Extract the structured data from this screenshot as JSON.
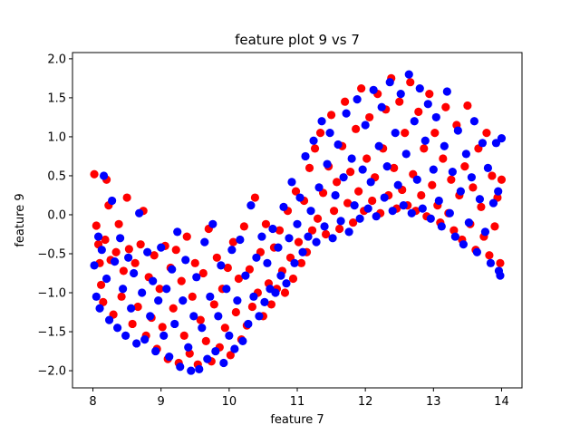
{
  "chart_data": {
    "type": "scatter",
    "title": "feature plot 9 vs 7",
    "xlabel": "feature 7",
    "ylabel": "feature 9",
    "xlim": [
      7.7,
      14.3
    ],
    "ylim": [
      -2.22,
      2.08
    ],
    "xticks": [
      "8",
      "9",
      "10",
      "11",
      "12",
      "13",
      "14"
    ],
    "yticks": [
      "−2.0",
      "−1.5",
      "−1.0",
      "−0.5",
      "0.0",
      "0.5",
      "1.0",
      "1.5",
      "2.0"
    ],
    "grid": false,
    "series": [
      {
        "color": "#ff0000",
        "points": [
          [
            8.02,
            0.52
          ],
          [
            8.05,
            -0.14
          ],
          [
            8.08,
            -0.38
          ],
          [
            8.1,
            -0.62
          ],
          [
            8.12,
            -0.9
          ],
          [
            8.15,
            -1.12
          ],
          [
            8.18,
            -0.32
          ],
          [
            8.2,
            0.45
          ],
          [
            8.23,
            0.12
          ],
          [
            8.26,
            -0.58
          ],
          [
            8.3,
            -1.28
          ],
          [
            8.34,
            -0.48
          ],
          [
            8.38,
            -0.12
          ],
          [
            8.42,
            -1.05
          ],
          [
            8.45,
            -0.72
          ],
          [
            8.5,
            0.22
          ],
          [
            8.53,
            -0.44
          ],
          [
            8.58,
            -1.4
          ],
          [
            8.62,
            -0.62
          ],
          [
            8.66,
            -1.18
          ],
          [
            8.7,
            -0.38
          ],
          [
            8.74,
            0.05
          ],
          [
            8.78,
            -1.55
          ],
          [
            8.82,
            -0.8
          ],
          [
            8.86,
            -1.32
          ],
          [
            8.9,
            -0.52
          ],
          [
            8.94,
            -1.72
          ],
          [
            8.98,
            -0.95
          ],
          [
            9.02,
            -1.44
          ],
          [
            9.06,
            -0.4
          ],
          [
            9.1,
            -1.85
          ],
          [
            9.14,
            -0.68
          ],
          [
            9.18,
            -1.2
          ],
          [
            9.22,
            -0.45
          ],
          [
            9.26,
            -1.9
          ],
          [
            9.3,
            -0.85
          ],
          [
            9.34,
            -1.55
          ],
          [
            9.38,
            -0.28
          ],
          [
            9.42,
            -1.78
          ],
          [
            9.46,
            -1.05
          ],
          [
            9.5,
            -0.62
          ],
          [
            9.54,
            -1.92
          ],
          [
            9.58,
            -1.35
          ],
          [
            9.62,
            -0.75
          ],
          [
            9.66,
            -1.62
          ],
          [
            9.7,
            -0.18
          ],
          [
            9.74,
            -1.88
          ],
          [
            9.78,
            -1.15
          ],
          [
            9.82,
            -0.55
          ],
          [
            9.86,
            -1.7
          ],
          [
            9.9,
            -0.95
          ],
          [
            9.94,
            -1.45
          ],
          [
            9.98,
            -0.68
          ],
          [
            10.02,
            -1.8
          ],
          [
            10.06,
            -0.35
          ],
          [
            10.1,
            -1.25
          ],
          [
            10.14,
            -0.82
          ],
          [
            10.18,
            -1.6
          ],
          [
            10.22,
            -0.15
          ],
          [
            10.26,
            -1.42
          ],
          [
            10.3,
            -0.7
          ],
          [
            10.34,
            -1.18
          ],
          [
            10.38,
            0.22
          ],
          [
            10.42,
            -1.0
          ],
          [
            10.46,
            -0.48
          ],
          [
            10.5,
            -1.3
          ],
          [
            10.54,
            -0.12
          ],
          [
            10.58,
            -0.88
          ],
          [
            10.62,
            -1.15
          ],
          [
            10.66,
            -0.42
          ],
          [
            10.7,
            -0.95
          ],
          [
            10.74,
            -0.2
          ],
          [
            10.78,
            -0.72
          ],
          [
            10.82,
            -1.0
          ],
          [
            10.86,
            0.05
          ],
          [
            10.9,
            -0.55
          ],
          [
            10.94,
            -0.82
          ],
          [
            10.98,
            0.3
          ],
          [
            11.02,
            -0.35
          ],
          [
            11.06,
            -0.62
          ],
          [
            11.1,
            0.18
          ],
          [
            11.14,
            -0.48
          ],
          [
            11.18,
            0.6
          ],
          [
            11.22,
            -0.2
          ],
          [
            11.26,
            0.85
          ],
          [
            11.3,
            -0.05
          ],
          [
            11.34,
            1.05
          ],
          [
            11.38,
            0.28
          ],
          [
            11.42,
            -0.25
          ],
          [
            11.46,
            0.62
          ],
          [
            11.5,
            1.28
          ],
          [
            11.54,
            0.05
          ],
          [
            11.58,
            0.42
          ],
          [
            11.62,
            -0.18
          ],
          [
            11.66,
            0.88
          ],
          [
            11.7,
            1.45
          ],
          [
            11.74,
            0.15
          ],
          [
            11.78,
            0.55
          ],
          [
            11.82,
            -0.1
          ],
          [
            11.86,
            1.1
          ],
          [
            11.9,
            0.3
          ],
          [
            11.94,
            1.62
          ],
          [
            11.98,
            0.05
          ],
          [
            12.02,
            0.72
          ],
          [
            12.06,
            1.25
          ],
          [
            12.1,
            0.18
          ],
          [
            12.14,
            0.48
          ],
          [
            12.18,
            1.55
          ],
          [
            12.22,
            0.02
          ],
          [
            12.26,
            0.85
          ],
          [
            12.3,
            1.35
          ],
          [
            12.34,
            0.25
          ],
          [
            12.38,
            1.75
          ],
          [
            12.42,
            0.6
          ],
          [
            12.46,
            0.08
          ],
          [
            12.5,
            1.45
          ],
          [
            12.54,
            0.32
          ],
          [
            12.58,
            1.05
          ],
          [
            12.62,
            0.12
          ],
          [
            12.66,
            1.7
          ],
          [
            12.7,
            0.52
          ],
          [
            12.74,
            0.05
          ],
          [
            12.78,
            1.32
          ],
          [
            12.82,
            0.25
          ],
          [
            12.86,
            0.85
          ],
          [
            12.9,
            -0.02
          ],
          [
            12.94,
            1.55
          ],
          [
            12.98,
            0.38
          ],
          [
            13.02,
            1.05
          ],
          [
            13.06,
            0.12
          ],
          [
            13.1,
            -0.1
          ],
          [
            13.14,
            0.72
          ],
          [
            13.18,
            1.38
          ],
          [
            13.22,
            0.02
          ],
          [
            13.26,
            0.45
          ],
          [
            13.3,
            -0.2
          ],
          [
            13.34,
            1.15
          ],
          [
            13.38,
            0.25
          ],
          [
            13.42,
            -0.32
          ],
          [
            13.46,
            0.62
          ],
          [
            13.5,
            1.4
          ],
          [
            13.54,
            -0.12
          ],
          [
            13.58,
            0.35
          ],
          [
            13.62,
            -0.45
          ],
          [
            13.66,
            0.85
          ],
          [
            13.7,
            0.1
          ],
          [
            13.74,
            -0.28
          ],
          [
            13.78,
            1.05
          ],
          [
            13.82,
            -0.52
          ],
          [
            13.86,
            0.5
          ],
          [
            13.9,
            -0.15
          ],
          [
            13.94,
            0.22
          ],
          [
            13.98,
            -0.62
          ],
          [
            14.0,
            0.45
          ]
        ]
      },
      {
        "color": "#0000ff",
        "points": [
          [
            8.02,
            -0.65
          ],
          [
            8.05,
            -1.05
          ],
          [
            8.08,
            -0.28
          ],
          [
            8.1,
            -1.2
          ],
          [
            8.13,
            -0.45
          ],
          [
            8.16,
            0.5
          ],
          [
            8.2,
            -0.82
          ],
          [
            8.24,
            -1.35
          ],
          [
            8.28,
            0.18
          ],
          [
            8.32,
            -0.6
          ],
          [
            8.36,
            -1.45
          ],
          [
            8.4,
            -0.3
          ],
          [
            8.44,
            -0.95
          ],
          [
            8.48,
            -1.55
          ],
          [
            8.52,
            -0.55
          ],
          [
            8.56,
            -1.2
          ],
          [
            8.6,
            -0.75
          ],
          [
            8.64,
            -1.65
          ],
          [
            8.68,
            0.02
          ],
          [
            8.72,
            -1.0
          ],
          [
            8.76,
            -1.6
          ],
          [
            8.8,
            -0.48
          ],
          [
            8.84,
            -1.3
          ],
          [
            8.88,
            -0.85
          ],
          [
            8.92,
            -1.75
          ],
          [
            8.96,
            -1.1
          ],
          [
            9.0,
            -0.42
          ],
          [
            9.04,
            -1.55
          ],
          [
            9.08,
            -0.95
          ],
          [
            9.12,
            -1.82
          ],
          [
            9.16,
            -0.7
          ],
          [
            9.2,
            -1.4
          ],
          [
            9.24,
            -0.22
          ],
          [
            9.28,
            -1.95
          ],
          [
            9.32,
            -1.1
          ],
          [
            9.36,
            -0.58
          ],
          [
            9.4,
            -1.7
          ],
          [
            9.44,
            -2.0
          ],
          [
            9.48,
            -1.3
          ],
          [
            9.52,
            -0.8
          ],
          [
            9.56,
            -1.98
          ],
          [
            9.6,
            -1.45
          ],
          [
            9.64,
            -0.35
          ],
          [
            9.68,
            -1.85
          ],
          [
            9.72,
            -1.05
          ],
          [
            9.76,
            -0.12
          ],
          [
            9.8,
            -1.75
          ],
          [
            9.84,
            -1.3
          ],
          [
            9.88,
            -0.65
          ],
          [
            9.92,
            -1.9
          ],
          [
            9.96,
            -0.95
          ],
          [
            10.0,
            -1.55
          ],
          [
            10.04,
            -0.45
          ],
          [
            10.08,
            -1.72
          ],
          [
            10.12,
            -1.1
          ],
          [
            10.16,
            -0.32
          ],
          [
            10.2,
            -1.62
          ],
          [
            10.24,
            -0.78
          ],
          [
            10.28,
            -1.4
          ],
          [
            10.32,
            0.12
          ],
          [
            10.36,
            -1.05
          ],
          [
            10.4,
            -0.55
          ],
          [
            10.44,
            -1.3
          ],
          [
            10.48,
            -0.28
          ],
          [
            10.52,
            -1.12
          ],
          [
            10.56,
            -0.62
          ],
          [
            10.6,
            -0.95
          ],
          [
            10.64,
            -0.18
          ],
          [
            10.68,
            -1.0
          ],
          [
            10.72,
            -0.42
          ],
          [
            10.76,
            -0.78
          ],
          [
            10.8,
            0.1
          ],
          [
            10.84,
            -0.88
          ],
          [
            10.88,
            -0.3
          ],
          [
            10.92,
            0.42
          ],
          [
            10.96,
            -0.62
          ],
          [
            11.0,
            -0.12
          ],
          [
            11.04,
            0.22
          ],
          [
            11.08,
            -0.48
          ],
          [
            11.12,
            0.75
          ],
          [
            11.16,
            -0.28
          ],
          [
            11.2,
            0.05
          ],
          [
            11.24,
            0.95
          ],
          [
            11.28,
            -0.35
          ],
          [
            11.32,
            0.35
          ],
          [
            11.36,
            1.2
          ],
          [
            11.4,
            -0.15
          ],
          [
            11.44,
            0.65
          ],
          [
            11.48,
            1.05
          ],
          [
            11.52,
            -0.3
          ],
          [
            11.56,
            0.25
          ],
          [
            11.6,
            0.9
          ],
          [
            11.64,
            -0.08
          ],
          [
            11.68,
            0.48
          ],
          [
            11.72,
            1.3
          ],
          [
            11.76,
            -0.22
          ],
          [
            11.8,
            0.72
          ],
          [
            11.84,
            0.12
          ],
          [
            11.88,
            1.48
          ],
          [
            11.92,
            -0.05
          ],
          [
            11.96,
            0.58
          ],
          [
            12.0,
            1.15
          ],
          [
            12.04,
            0.08
          ],
          [
            12.08,
            0.42
          ],
          [
            12.12,
            1.6
          ],
          [
            12.16,
            -0.02
          ],
          [
            12.2,
            0.88
          ],
          [
            12.24,
            1.38
          ],
          [
            12.28,
            0.22
          ],
          [
            12.32,
            0.62
          ],
          [
            12.36,
            1.7
          ],
          [
            12.4,
            0.05
          ],
          [
            12.44,
            1.05
          ],
          [
            12.48,
            0.38
          ],
          [
            12.52,
            1.55
          ],
          [
            12.56,
            0.12
          ],
          [
            12.6,
            0.78
          ],
          [
            12.64,
            1.8
          ],
          [
            12.68,
            0.02
          ],
          [
            12.72,
            1.2
          ],
          [
            12.76,
            0.45
          ],
          [
            12.8,
            1.62
          ],
          [
            12.84,
            0.08
          ],
          [
            12.88,
            0.95
          ],
          [
            12.92,
            1.42
          ],
          [
            12.96,
            -0.05
          ],
          [
            13.0,
            0.58
          ],
          [
            13.04,
            1.25
          ],
          [
            13.08,
            0.18
          ],
          [
            13.12,
            -0.15
          ],
          [
            13.16,
            0.88
          ],
          [
            13.2,
            1.58
          ],
          [
            13.24,
            0.02
          ],
          [
            13.28,
            0.55
          ],
          [
            13.32,
            -0.28
          ],
          [
            13.36,
            1.08
          ],
          [
            13.4,
            0.3
          ],
          [
            13.44,
            -0.38
          ],
          [
            13.48,
            0.78
          ],
          [
            13.52,
            -0.1
          ],
          [
            13.56,
            0.48
          ],
          [
            13.6,
            1.2
          ],
          [
            13.64,
            -0.48
          ],
          [
            13.68,
            0.2
          ],
          [
            13.72,
            0.92
          ],
          [
            13.76,
            -0.22
          ],
          [
            13.8,
            0.6
          ],
          [
            13.84,
            -0.62
          ],
          [
            13.88,
            0.15
          ],
          [
            13.92,
            0.92
          ],
          [
            13.96,
            -0.72
          ],
          [
            14.0,
            0.98
          ],
          [
            13.98,
            -0.78
          ],
          [
            13.95,
            0.3
          ]
        ]
      }
    ]
  }
}
